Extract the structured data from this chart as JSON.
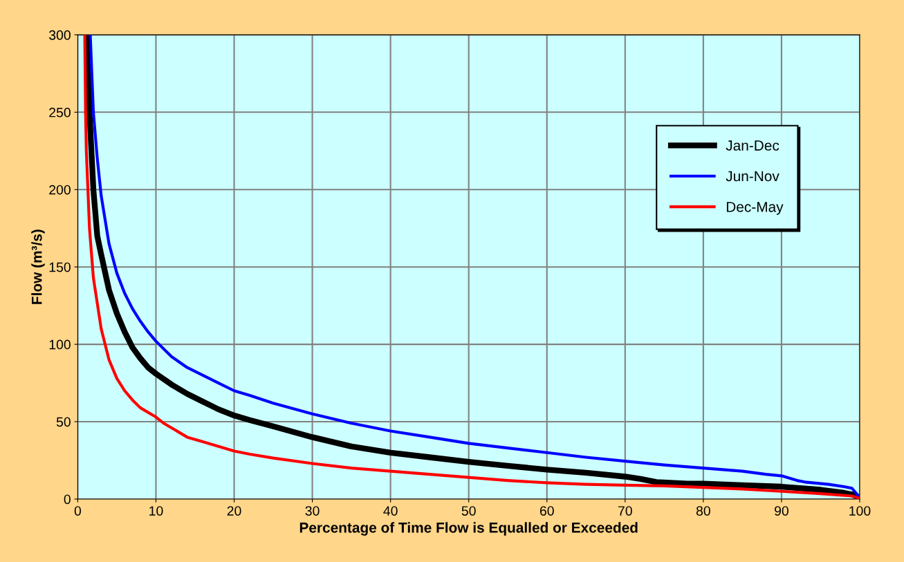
{
  "chart_data": {
    "type": "line",
    "xlabel": "Percentage of Time Flow is Equalled or Exceeded",
    "ylabel": "Flow (m³/s)",
    "xlim": [
      0,
      100
    ],
    "xticks": [
      0,
      10,
      20,
      30,
      40,
      50,
      60,
      70,
      80,
      90,
      100
    ],
    "ylim": [
      0,
      300
    ],
    "yticks": [
      0,
      50,
      100,
      150,
      200,
      250,
      300
    ],
    "grid": true,
    "legend": "top right",
    "marker": "none",
    "line_style": "solid",
    "series": [
      {
        "name": "Jan-Dec",
        "color": "#000000",
        "x": [
          1.2,
          1.5,
          2,
          2.5,
          3,
          4,
          5,
          6,
          7,
          8,
          9,
          10,
          12,
          14,
          16,
          18,
          20,
          22,
          25,
          30,
          35,
          40,
          45,
          50,
          55,
          60,
          65,
          70,
          72,
          74,
          78,
          80,
          85,
          90,
          95,
          98,
          99,
          100
        ],
        "values": [
          300,
          250,
          200,
          170,
          158,
          135,
          120,
          108,
          98,
          91,
          85,
          81,
          74,
          68,
          63,
          58,
          54,
          51,
          47,
          40,
          34,
          30,
          27,
          24,
          21.5,
          19,
          17,
          14.5,
          13,
          11,
          10,
          10,
          9,
          8,
          6,
          4,
          3,
          1
        ]
      },
      {
        "name": "Jun-Nov",
        "color": "#0000ff",
        "x": [
          1.6,
          2,
          2.5,
          3,
          4,
          5,
          6,
          7,
          8,
          9,
          10,
          12,
          14,
          16,
          18,
          20,
          22,
          25,
          30,
          35,
          40,
          45,
          50,
          55,
          60,
          65,
          70,
          75,
          80,
          85,
          88,
          90,
          92,
          93,
          96,
          98,
          99,
          100
        ],
        "values": [
          300,
          250,
          220,
          196,
          165,
          146,
          133,
          123,
          115,
          108,
          102,
          92,
          85,
          80,
          75,
          70,
          67,
          62,
          55,
          49,
          44,
          40,
          36,
          33,
          30,
          27,
          24.5,
          22,
          20,
          18,
          16,
          15,
          12,
          11,
          9.5,
          8,
          7,
          1
        ]
      },
      {
        "name": "Dec-May",
        "color": "#ff0000",
        "x": [
          0.9,
          1,
          1.1,
          1.5,
          2,
          3,
          4,
          5,
          6,
          7,
          8,
          10,
          11,
          12,
          14,
          16,
          18,
          20,
          22,
          25,
          30,
          35,
          40,
          45,
          50,
          55,
          60,
          65,
          70,
          75,
          80,
          85,
          90,
          95,
          99,
          100
        ],
        "values": [
          300,
          250,
          225,
          175,
          143,
          110,
          90,
          78,
          70,
          64,
          59,
          53,
          49,
          46,
          40,
          37,
          34,
          31,
          29,
          26.5,
          23,
          20,
          18,
          16,
          14,
          12,
          10.5,
          9.5,
          9,
          8.5,
          7.5,
          6.5,
          5,
          3.5,
          2,
          0.5
        ]
      }
    ]
  }
}
